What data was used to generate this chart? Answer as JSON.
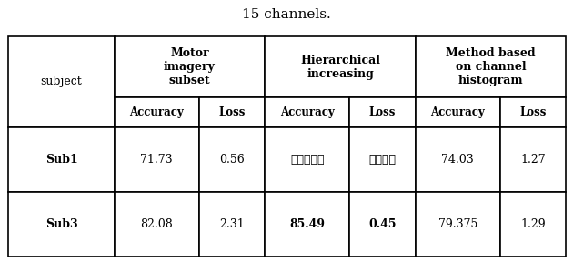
{
  "title": "15 channels.",
  "title_fontsize": 11,
  "sub_headers": [
    "Accuracy",
    "Loss",
    "Accuracy",
    "Loss",
    "Accuracy",
    "Loss"
  ],
  "background_color": "#ffffff",
  "border_color": "#000000",
  "text_color": "#000000",
  "arabic_sub1_acc": "١٤،٠٣",
  "arabic_sub1_loss": "٠،٤٢",
  "sub3_cells": [
    "82.08",
    "2.31",
    "85.49",
    "0.45",
    "79.375",
    "1.29"
  ],
  "sub3_bold": [
    false,
    false,
    true,
    true,
    false,
    false
  ],
  "sub1_cells_latin": [
    "71.73",
    "0.56",
    "74.03",
    "1.27"
  ]
}
